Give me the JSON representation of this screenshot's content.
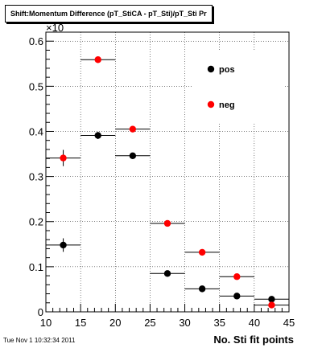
{
  "chart_data": {
    "type": "scatter",
    "title": "Shift:Momentum Difference (pT_StiCA - pT_Sti)/pT_Sti Pr",
    "xlabel": "No. Sti fit points",
    "ylabel": "",
    "y_multiplier_label": "×10",
    "xlim": [
      10,
      45
    ],
    "ylim": [
      0,
      0.62
    ],
    "x_ticks": [
      10,
      15,
      20,
      25,
      30,
      35,
      40,
      45
    ],
    "x_tick_labels": [
      "10",
      "15",
      "20",
      "25",
      "30",
      "35",
      "40",
      "45"
    ],
    "y_ticks": [
      0,
      0.1,
      0.2,
      0.3,
      0.4,
      0.5,
      0.6
    ],
    "y_tick_labels": [
      "0",
      "0.1",
      "0.2",
      "0.3",
      "0.4",
      "0.5",
      "0.6"
    ],
    "grid": true,
    "legend_position": "top-right",
    "series": [
      {
        "name": "pos",
        "color": "#000000",
        "points": [
          {
            "x": 12.5,
            "y": 0.148,
            "xlo": 10,
            "xhi": 15,
            "yerr": 0.015
          },
          {
            "x": 17.5,
            "y": 0.391,
            "xlo": 15,
            "xhi": 20,
            "yerr": 0.008
          },
          {
            "x": 22.5,
            "y": 0.346,
            "xlo": 20,
            "xhi": 25,
            "yerr": 0.006
          },
          {
            "x": 27.5,
            "y": 0.085,
            "xlo": 25,
            "xhi": 30,
            "yerr": 0.004
          },
          {
            "x": 32.5,
            "y": 0.051,
            "xlo": 30,
            "xhi": 35,
            "yerr": 0.004
          },
          {
            "x": 37.5,
            "y": 0.035,
            "xlo": 35,
            "xhi": 40,
            "yerr": 0.004
          },
          {
            "x": 42.5,
            "y": 0.028,
            "xlo": 40,
            "xhi": 45,
            "yerr": 0.004
          }
        ]
      },
      {
        "name": "neg",
        "color": "#ff0000",
        "points": [
          {
            "x": 12.5,
            "y": 0.341,
            "xlo": 10,
            "xhi": 15,
            "yerr": 0.018
          },
          {
            "x": 17.5,
            "y": 0.559,
            "xlo": 15,
            "xhi": 20,
            "yerr": 0.006
          },
          {
            "x": 22.5,
            "y": 0.405,
            "xlo": 20,
            "xhi": 25,
            "yerr": 0.006
          },
          {
            "x": 27.5,
            "y": 0.196,
            "xlo": 25,
            "xhi": 30,
            "yerr": 0.004
          },
          {
            "x": 32.5,
            "y": 0.132,
            "xlo": 30,
            "xhi": 35,
            "yerr": 0.004
          },
          {
            "x": 37.5,
            "y": 0.078,
            "xlo": 35,
            "xhi": 40,
            "yerr": 0.004
          },
          {
            "x": 42.5,
            "y": 0.015,
            "xlo": 40,
            "xhi": 45,
            "yerr": 0.004
          }
        ]
      }
    ]
  },
  "footer": {
    "timestamp": "Tue Nov  1 10:32:34 2011"
  }
}
